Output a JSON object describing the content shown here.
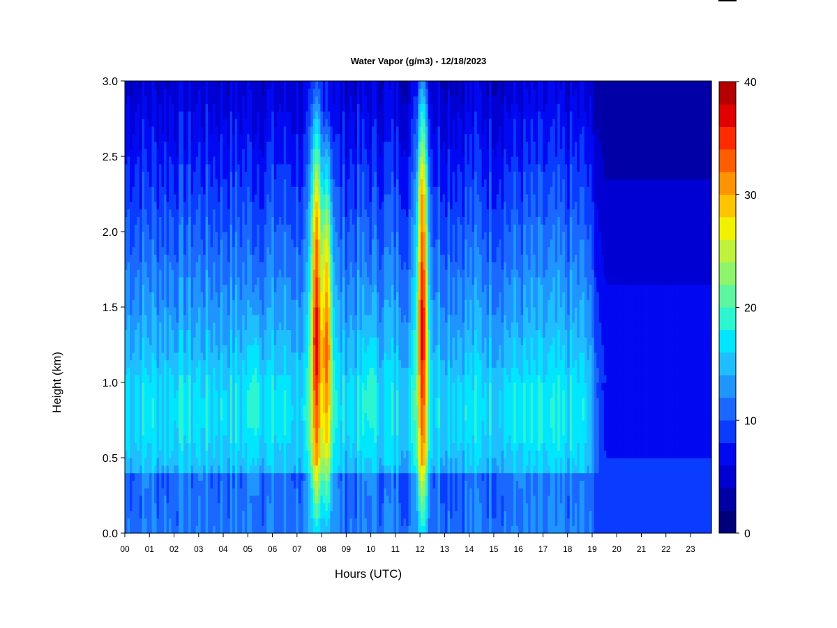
{
  "chart_data": {
    "type": "heatmap",
    "title": "Water Vapor (g/m3) - 12/18/2023",
    "xlabel": "Hours (UTC)",
    "ylabel": "Height (km)",
    "x_ticks": [
      "00",
      "01",
      "02",
      "03",
      "04",
      "05",
      "06",
      "07",
      "08",
      "09",
      "10",
      "11",
      "12",
      "13",
      "14",
      "15",
      "16",
      "17",
      "18",
      "19",
      "20",
      "21",
      "22",
      "23"
    ],
    "xlim": [
      0,
      23.85
    ],
    "y_ticks": [
      "0.0",
      "0.5",
      "1.0",
      "1.5",
      "2.0",
      "2.5",
      "3.0"
    ],
    "ylim": [
      0,
      3.0
    ],
    "colorbar": {
      "min": 0,
      "max": 40,
      "step": 2,
      "ticks": [
        "0",
        "10",
        "20",
        "30",
        "40"
      ],
      "colors": [
        "#00007a",
        "#0000a6",
        "#0000d2",
        "#0009f2",
        "#0a3cff",
        "#1a68ff",
        "#1f95ff",
        "#1fbfff",
        "#00e6ff",
        "#2cf5d2",
        "#5cf5a0",
        "#8ef56a",
        "#c0f23c",
        "#f2f200",
        "#ffc400",
        "#ff9400",
        "#ff5e00",
        "#ff2a00",
        "#e00000",
        "#b40000"
      ]
    },
    "vapor_events": [
      {
        "center_hour": 0.9,
        "peak_g_m3": 18,
        "base_km": 0.42,
        "top_km": 1.2
      },
      {
        "center_hour": 2.3,
        "peak_g_m3": 18,
        "base_km": 0.42,
        "top_km": 1.2
      },
      {
        "center_hour": 3.1,
        "peak_g_m3": 17,
        "base_km": 0.42,
        "top_km": 1.2
      },
      {
        "center_hour": 5.3,
        "peak_g_m3": 20,
        "base_km": 0.45,
        "top_km": 1.3
      },
      {
        "center_hour": 7.8,
        "peak_g_m3": 38,
        "base_km": 0.45,
        "top_km": 2.1
      },
      {
        "center_hour": 8.2,
        "peak_g_m3": 34,
        "base_km": 0.5,
        "top_km": 1.9
      },
      {
        "center_hour": 10.0,
        "peak_g_m3": 20,
        "base_km": 0.5,
        "top_km": 1.3
      },
      {
        "center_hour": 12.1,
        "peak_g_m3": 38,
        "base_km": 0.45,
        "top_km": 2.25
      },
      {
        "center_hour": 15.3,
        "peak_g_m3": 16,
        "base_km": 0.42,
        "top_km": 1.2
      },
      {
        "center_hour": 16.1,
        "peak_g_m3": 18,
        "base_km": 0.42,
        "top_km": 1.2
      },
      {
        "center_hour": 18.0,
        "peak_g_m3": 16,
        "base_km": 0.42,
        "top_km": 1.2
      }
    ],
    "grid": false,
    "legend": "colorbar-right"
  }
}
